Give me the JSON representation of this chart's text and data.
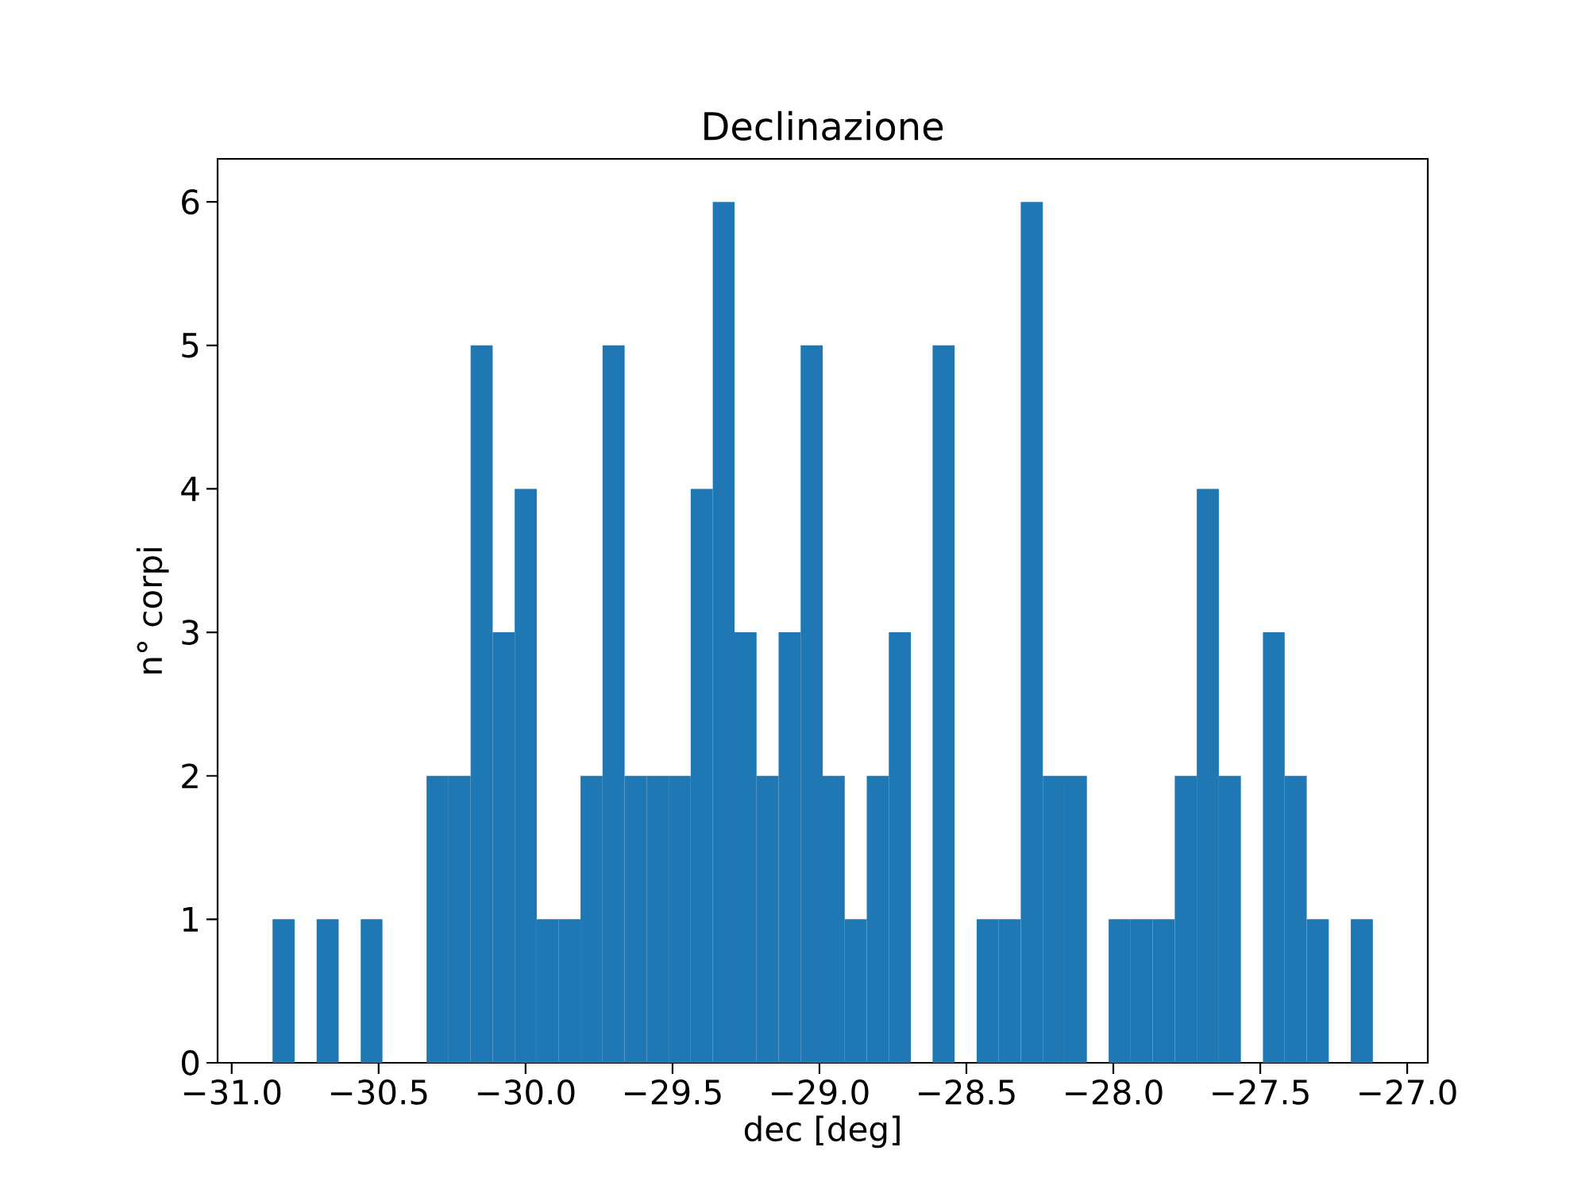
{
  "chart_data": {
    "type": "histogram",
    "title": "Declinazione",
    "xlabel": "dec [deg]",
    "ylabel": "n° corpi",
    "bins": [
      -30.861,
      -30.786,
      -30.711,
      -30.636,
      -30.561,
      -30.487,
      -30.412,
      -30.337,
      -30.262,
      -30.187,
      -30.112,
      -30.037,
      -29.962,
      -29.888,
      -29.813,
      -29.738,
      -29.663,
      -29.588,
      -29.513,
      -29.438,
      -29.363,
      -29.289,
      -29.214,
      -29.139,
      -29.064,
      -28.989,
      -28.914,
      -28.839,
      -28.764,
      -28.689,
      -28.615,
      -28.54,
      -28.465,
      -28.39,
      -28.315,
      -28.24,
      -28.165,
      -28.09,
      -28.016,
      -27.941,
      -27.866,
      -27.791,
      -27.716,
      -27.641,
      -27.566,
      -27.491,
      -27.417,
      -27.342,
      -27.267,
      -27.192,
      -27.117
    ],
    "values": [
      1,
      0,
      1,
      0,
      1,
      0,
      0,
      2,
      2,
      5,
      3,
      4,
      1,
      1,
      2,
      5,
      2,
      2,
      2,
      4,
      6,
      3,
      2,
      3,
      5,
      2,
      1,
      2,
      3,
      0,
      5,
      0,
      1,
      1,
      6,
      2,
      2,
      0,
      1,
      1,
      1,
      2,
      4,
      2,
      0,
      3,
      2,
      1,
      0,
      1
    ],
    "color": "#1f77b4",
    "xlim": [
      -31.048,
      -26.93
    ],
    "ylim": [
      0,
      6.3
    ],
    "xticks": [
      {
        "value": -31.0,
        "label": "−31.0"
      },
      {
        "value": -30.5,
        "label": "−30.5"
      },
      {
        "value": -30.0,
        "label": "−30.0"
      },
      {
        "value": -29.5,
        "label": "−29.5"
      },
      {
        "value": -29.0,
        "label": "−29.0"
      },
      {
        "value": -28.5,
        "label": "−28.5"
      },
      {
        "value": -28.0,
        "label": "−28.0"
      },
      {
        "value": -27.5,
        "label": "−27.5"
      },
      {
        "value": -27.0,
        "label": "−27.0"
      }
    ],
    "yticks": [
      0,
      1,
      2,
      3,
      4,
      5,
      6
    ]
  }
}
